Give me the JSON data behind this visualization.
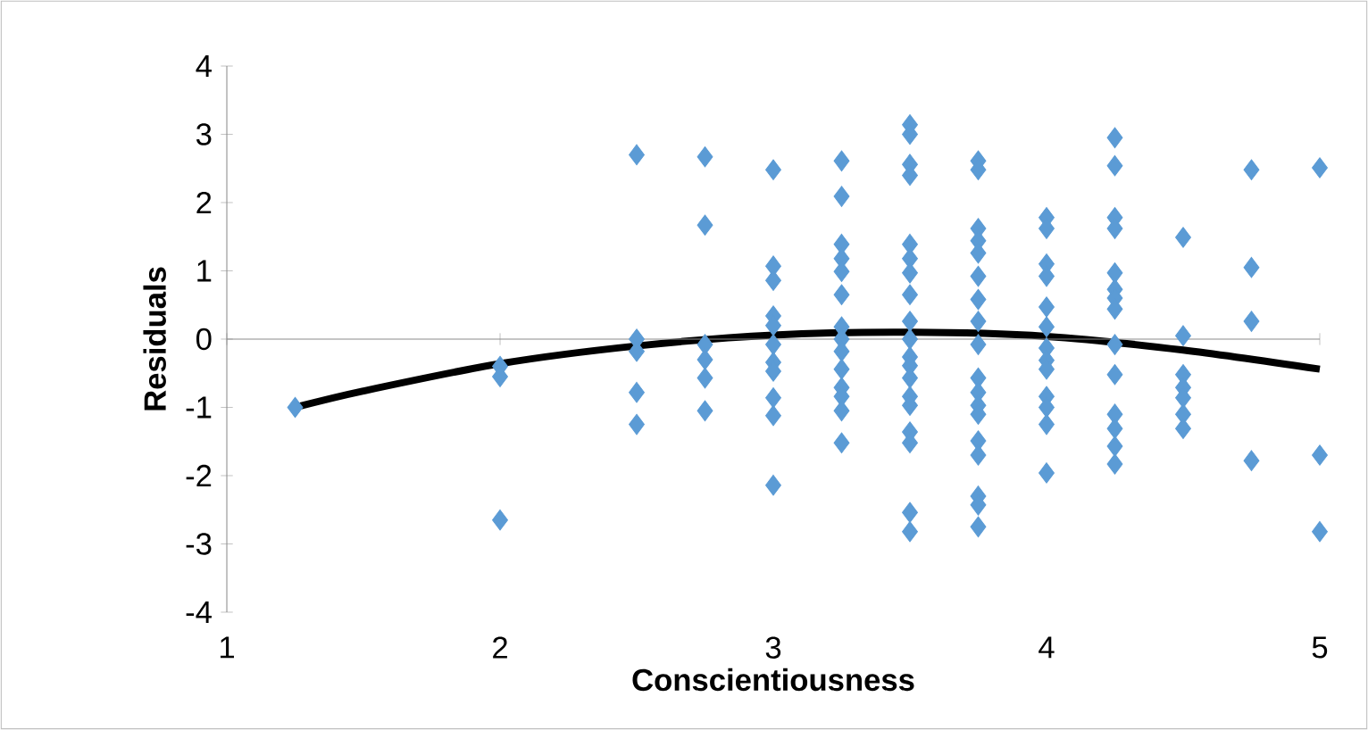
{
  "chart_data": {
    "type": "scatter",
    "xlabel": "Conscientiousness",
    "ylabel": "Residuals",
    "xlim": [
      1,
      5
    ],
    "ylim": [
      -4,
      4
    ],
    "xticks": [
      1,
      2,
      3,
      4,
      5
    ],
    "yticks": [
      -4,
      -3,
      -2,
      -1,
      0,
      1,
      2,
      3,
      4
    ],
    "series": [
      {
        "type": "scatter",
        "color": "#5b9bd5",
        "marker": "diamond",
        "x": [
          1.25,
          2,
          2,
          2,
          2.5,
          2.5,
          2.5,
          2.5,
          2.5,
          2.75,
          2.75,
          2.75,
          2.75,
          2.75,
          2.75,
          3,
          3,
          3,
          3,
          3,
          3,
          3,
          3,
          3,
          3,
          3,
          3.25,
          3.25,
          3.25,
          3.25,
          3.25,
          3.25,
          3.25,
          3.25,
          3.25,
          3.25,
          3.25,
          3.25,
          3.25,
          3.25,
          3.5,
          3.5,
          3.5,
          3.5,
          3.5,
          3.5,
          3.5,
          3.5,
          3.5,
          3.5,
          3.5,
          3.5,
          3.5,
          3.5,
          3.5,
          3.5,
          3.5,
          3.5,
          3.5,
          3.75,
          3.75,
          3.75,
          3.75,
          3.75,
          3.75,
          3.75,
          3.75,
          3.75,
          3.75,
          3.75,
          3.75,
          3.75,
          3.75,
          3.75,
          3.75,
          3.75,
          3.75,
          4,
          4,
          4,
          4,
          4,
          4,
          4,
          4,
          4,
          4,
          4,
          4,
          4,
          4.25,
          4.25,
          4.25,
          4.25,
          4.25,
          4.25,
          4.25,
          4.25,
          4.25,
          4.25,
          4.25,
          4.25,
          4.25,
          4.25,
          4.5,
          4.5,
          4.5,
          4.5,
          4.5,
          4.5,
          4.5,
          4.75,
          4.75,
          4.75,
          4.75,
          5,
          5,
          5
        ],
        "values": [
          -1.0,
          -0.4,
          -0.55,
          -2.65,
          2.7,
          0.0,
          -0.18,
          -0.78,
          -1.25,
          2.67,
          1.67,
          -0.08,
          -0.3,
          -0.57,
          -1.05,
          2.48,
          1.07,
          0.86,
          0.34,
          0.2,
          -0.08,
          -0.34,
          -0.47,
          -0.86,
          -1.12,
          -2.14,
          2.61,
          2.09,
          1.39,
          1.18,
          0.99,
          0.65,
          0.18,
          0.0,
          -0.18,
          -0.44,
          -0.71,
          -0.84,
          -1.05,
          -1.52,
          3.14,
          3.0,
          2.56,
          2.4,
          1.39,
          1.18,
          0.97,
          0.65,
          0.26,
          0.0,
          -0.26,
          -0.39,
          -0.57,
          -0.84,
          -0.97,
          -1.36,
          -1.52,
          -2.54,
          -2.82,
          2.61,
          2.48,
          1.62,
          1.44,
          1.26,
          0.92,
          0.58,
          0.26,
          -0.08,
          -0.57,
          -0.78,
          -0.97,
          -1.1,
          -1.49,
          -1.7,
          -2.3,
          -2.43,
          -2.75,
          1.78,
          1.62,
          1.1,
          0.92,
          0.47,
          0.18,
          -0.13,
          -0.31,
          -0.44,
          -0.84,
          -1.0,
          -1.25,
          -1.96,
          2.95,
          2.54,
          1.78,
          1.62,
          0.97,
          0.73,
          0.6,
          0.44,
          -0.08,
          -0.52,
          -1.1,
          -1.31,
          -1.57,
          -1.83,
          1.49,
          0.05,
          -0.52,
          -0.71,
          -0.86,
          -1.1,
          -1.31,
          2.48,
          1.05,
          0.26,
          -1.78,
          2.51,
          -1.7,
          -2.82
        ]
      },
      {
        "type": "line",
        "color": "#000000",
        "marker": "none",
        "line_style": "solid",
        "x": [
          1.25,
          1.5,
          2,
          2.5,
          3,
          3.5,
          4,
          4.5,
          5
        ],
        "values": [
          -1.0,
          -0.76,
          -0.36,
          -0.1,
          0.06,
          0.1,
          0.04,
          -0.16,
          -0.44
        ]
      }
    ]
  }
}
